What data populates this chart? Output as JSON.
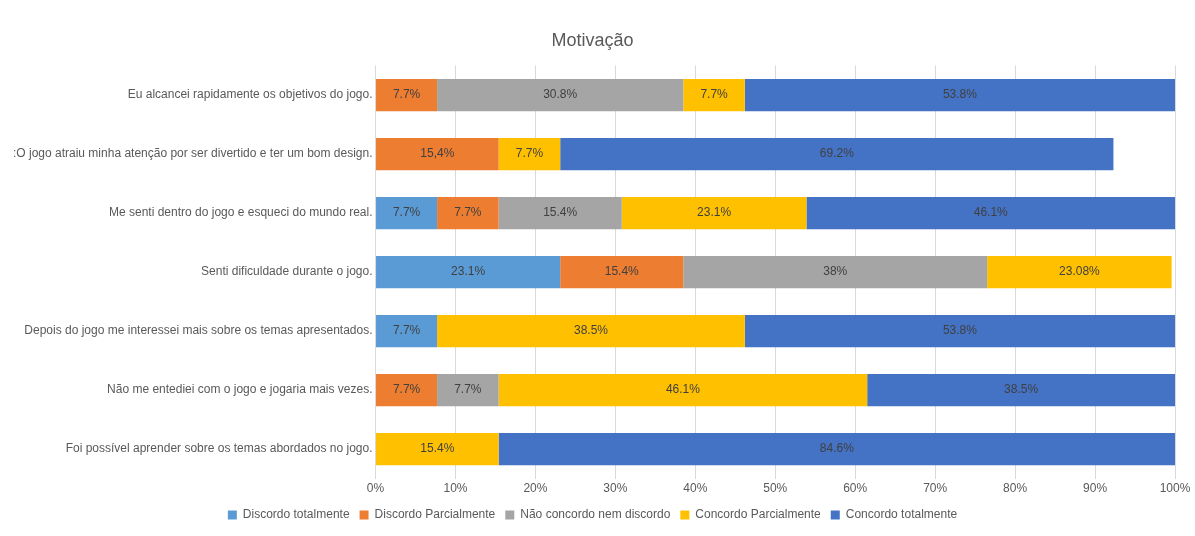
{
  "chart_data": {
    "type": "bar",
    "orientation": "horizontal",
    "stacked": true,
    "title": "Motivação",
    "categories": [
      "Eu alcancei rapidamente os objetivos do jogo.",
      ":O jogo atraiu minha atenção por ser divertido e ter um bom design.",
      "Me senti dentro do jogo e esqueci do mundo real.",
      "Senti dificuldade durante o jogo.",
      "Depois do jogo me interessei mais sobre os temas apresentados.",
      "Não me entediei com o jogo e jogaria mais vezes.",
      "Foi possível aprender sobre os temas abordados no jogo."
    ],
    "series": [
      {
        "name": "Discordo totalmente",
        "color": "#5b9bd5",
        "values": [
          null,
          null,
          7.7,
          23.1,
          7.7,
          null,
          null
        ],
        "value_labels": [
          null,
          null,
          "7.7%",
          "23.1%",
          "7.7%",
          null,
          null
        ]
      },
      {
        "name": "Discordo Parcialmente",
        "color": "#ed7d31",
        "values": [
          7.7,
          15.4,
          7.7,
          15.4,
          null,
          7.7,
          null
        ],
        "value_labels": [
          "7.7%",
          "15,4%",
          "7.7%",
          "15.4%",
          null,
          "7.7%",
          null
        ]
      },
      {
        "name": "Não concordo nem discordo",
        "color": "#a5a5a5",
        "values": [
          30.8,
          null,
          15.4,
          38,
          null,
          7.7,
          null
        ],
        "value_labels": [
          "30.8%",
          null,
          "15.4%",
          "38%",
          null,
          "7.7%",
          null
        ]
      },
      {
        "name": "Concordo Parcialmente",
        "color": "#ffc000",
        "values": [
          7.7,
          7.7,
          23.1,
          23.08,
          38.5,
          46.1,
          15.4
        ],
        "value_labels": [
          "7.7%",
          "7.7%",
          "23.1%",
          "23.08%",
          "38.5%",
          "46.1%",
          "15.4%"
        ]
      },
      {
        "name": "Concordo totalmente",
        "color": "#4472c4",
        "values": [
          53.8,
          69.2,
          46.1,
          null,
          53.8,
          38.5,
          84.6
        ],
        "value_labels": [
          "53.8%",
          "69.2%",
          "46.1%",
          null,
          "53.8%",
          "38.5%",
          "84.6%"
        ]
      }
    ],
    "xlim": [
      0,
      100
    ],
    "xticks": [
      {
        "value": 0,
        "label": "0%"
      },
      {
        "value": 10,
        "label": "10%"
      },
      {
        "value": 20,
        "label": "20%"
      },
      {
        "value": 30,
        "label": "30%"
      },
      {
        "value": 40,
        "label": "40%"
      },
      {
        "value": 50,
        "label": "50%"
      },
      {
        "value": 60,
        "label": "60%"
      },
      {
        "value": 70,
        "label": "70%"
      },
      {
        "value": 80,
        "label": "80%"
      },
      {
        "value": 90,
        "label": "90%"
      },
      {
        "value": 100,
        "label": "100%"
      }
    ],
    "grid": "x",
    "legend": "bottom"
  }
}
